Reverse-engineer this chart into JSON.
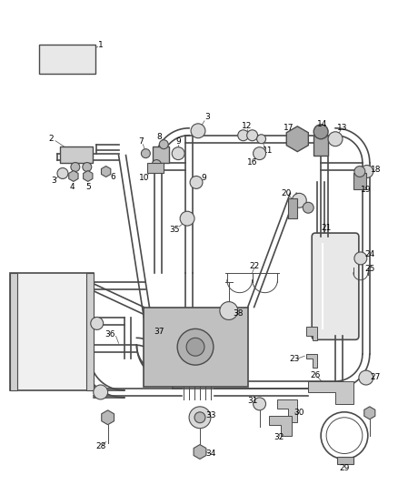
{
  "bg_color": "#ffffff",
  "lc": "#4a4a4a",
  "lc2": "#6a6a6a",
  "fc_light": "#d8d8d8",
  "fc_mid": "#b8b8b8",
  "fc_dark": "#989898",
  "label_fs": 6.5
}
